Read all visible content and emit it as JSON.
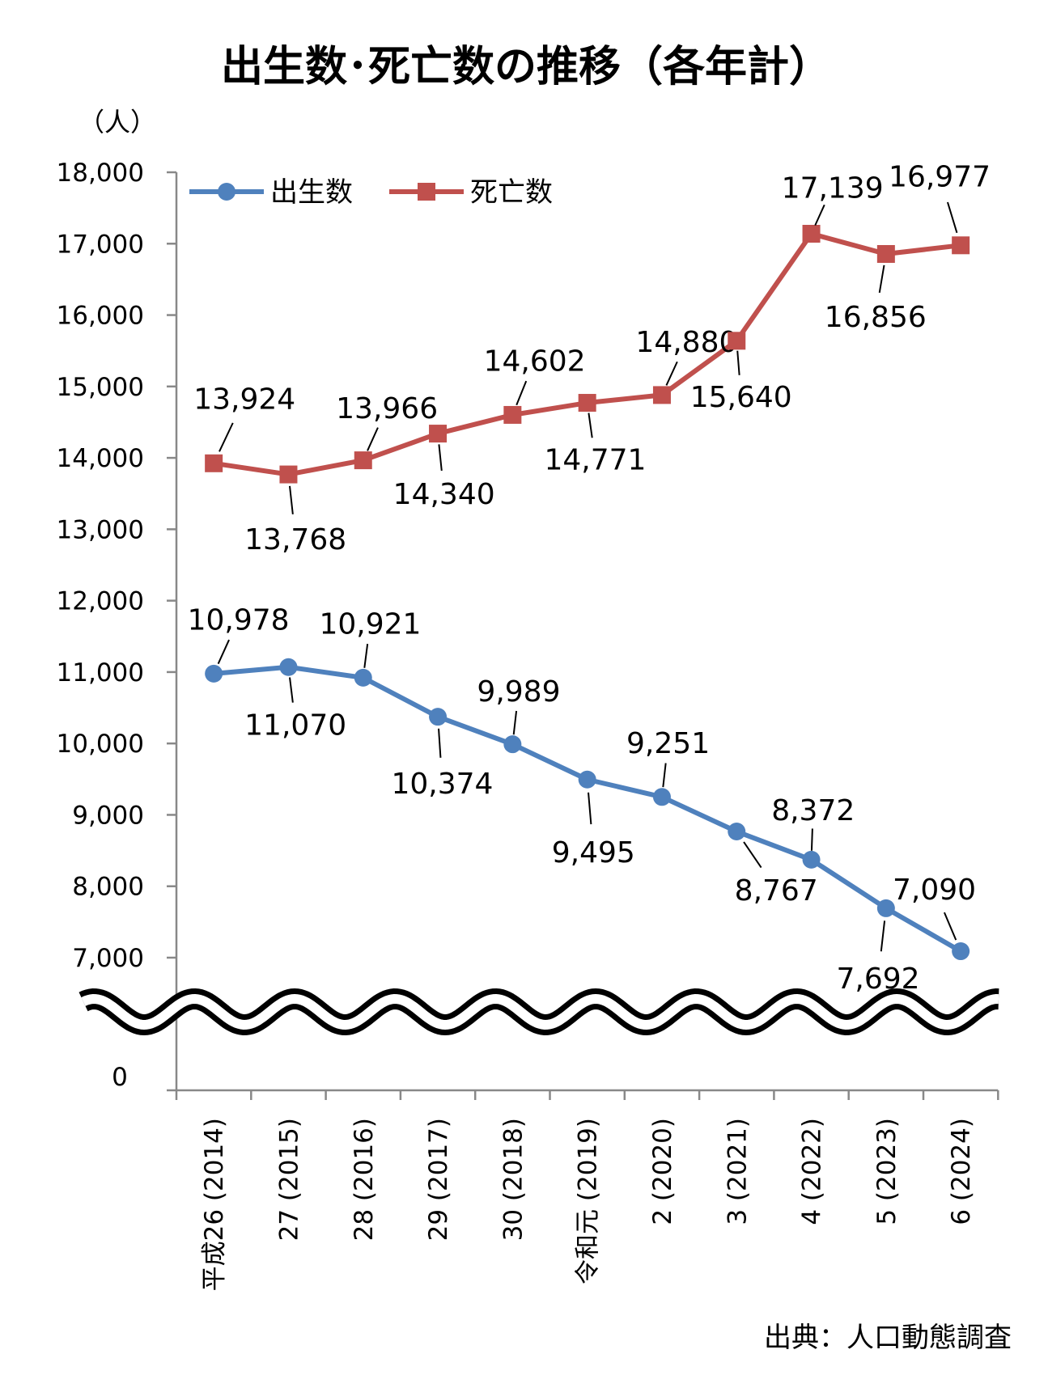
{
  "chart_data": {
    "type": "line",
    "title": "出生数･死亡数の推移（各年計）",
    "ylabel": "（人）",
    "source": "出典：人口動態調査",
    "ylim": [
      7000,
      18000
    ],
    "axis_break": true,
    "zero_label": "0",
    "yticks": [
      7000,
      8000,
      9000,
      10000,
      11000,
      12000,
      13000,
      14000,
      15000,
      16000,
      17000,
      18000
    ],
    "ytick_labels": [
      "7,000",
      "8,000",
      "9,000",
      "10,000",
      "11,000",
      "12,000",
      "13,000",
      "14,000",
      "15,000",
      "16,000",
      "17,000",
      "18,000"
    ],
    "categories": [
      "平成26 (2014)",
      "27 (2015)",
      "28 (2016)",
      "29 (2017)",
      "30 (2018)",
      "令和元 (2019)",
      "2 (2020)",
      "3 (2021)",
      "4 (2022)",
      "5 (2023)",
      "6 (2024)"
    ],
    "legend_position": "top-left",
    "grid": false,
    "series": [
      {
        "name": "出生数",
        "color": "#4f81bd",
        "marker": "circle",
        "values": [
          10978,
          11070,
          10921,
          10374,
          9989,
          9495,
          9251,
          8767,
          8372,
          7692,
          7090
        ],
        "labels": [
          "10,978",
          "11,070",
          "10,921",
          "10,374",
          "9,989",
          "9,495",
          "9,251",
          "8,767",
          "8,372",
          "7,692",
          "7,090"
        ]
      },
      {
        "name": "死亡数",
        "color": "#c0504d",
        "marker": "square",
        "values": [
          13924,
          13768,
          13966,
          14340,
          14602,
          14771,
          14880,
          15640,
          17139,
          16856,
          16977
        ],
        "labels": [
          "13,924",
          "13,768",
          "13,966",
          "14,340",
          "14,602",
          "14,771",
          "14,880",
          "15,640",
          "17,139",
          "16,856",
          "16,977"
        ]
      }
    ]
  }
}
